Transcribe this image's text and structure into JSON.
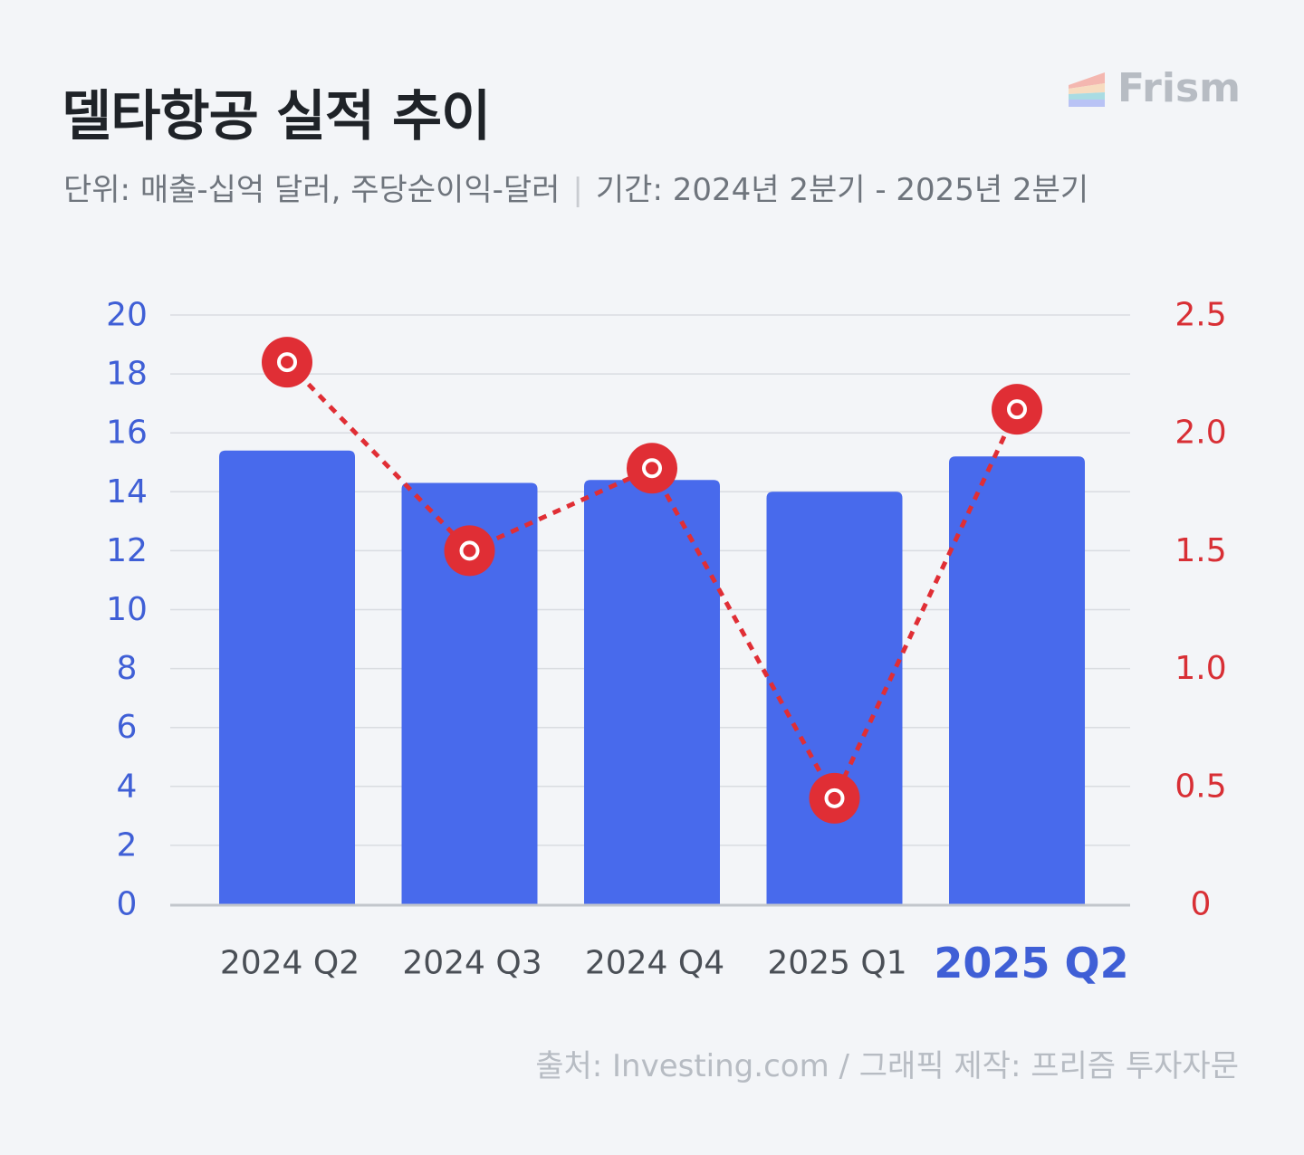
{
  "header": {
    "title": "델타항공 실적 추이",
    "unit_text": "단위: 매출-십억 달러, 주당순이익-달러",
    "separator": "|",
    "period_text": "기간: 2024년 2분기 - 2025년 2분기"
  },
  "brand": {
    "name": "Frism",
    "logo_icon": "frism-logo-icon"
  },
  "footer": {
    "source": "출처: Investing.com  / 그래픽 제작: 프리즘 투자자문"
  },
  "colors": {
    "bar": "#486aec",
    "line": "#e02e35",
    "left_axis": "#3f5fd6",
    "right_axis": "#d82f35",
    "highlight_label": "#3f5fd6",
    "category_label": "#4a4f56",
    "grid": "#d9dce1",
    "baseline": "#c2c6cc"
  },
  "chart_data": {
    "type": "bar",
    "categories": [
      "2024 Q2",
      "2024 Q3",
      "2024 Q4",
      "2025 Q1",
      "2025 Q2"
    ],
    "highlight_category": "2025 Q2",
    "series": [
      {
        "axis": "left",
        "type": "bar",
        "values": [
          15.4,
          14.3,
          14.4,
          14.0,
          15.2
        ]
      },
      {
        "axis": "right",
        "type": "line",
        "style": "dotted",
        "values": [
          2.3,
          1.5,
          1.85,
          0.45,
          2.1
        ]
      }
    ],
    "left_axis": {
      "ylim": [
        0,
        20
      ],
      "ticks": [
        "0",
        "2",
        "4",
        "6",
        "8",
        "10",
        "12",
        "14",
        "16",
        "18",
        "20"
      ]
    },
    "right_axis": {
      "ylim": [
        0,
        2.5
      ],
      "ticks": [
        "0",
        "0.5",
        "1.0",
        "1.5",
        "2.0",
        "2.5"
      ]
    },
    "grid": true
  }
}
